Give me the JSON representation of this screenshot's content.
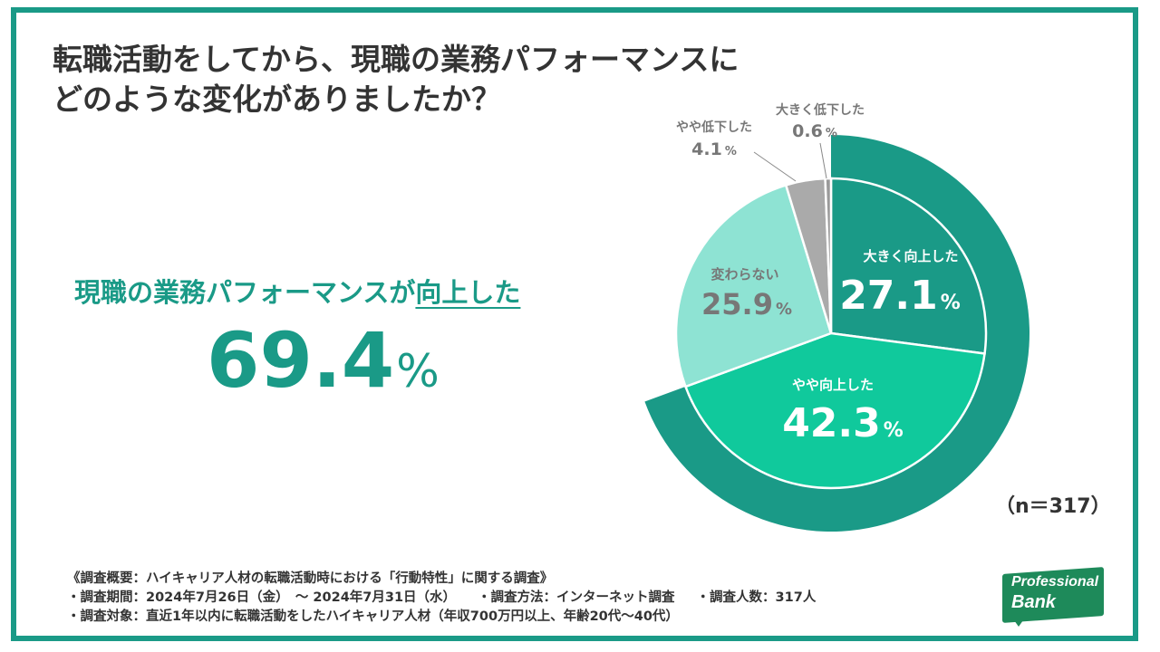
{
  "title": {
    "line1": "転職活動をしてから、現職の業務パフォーマンスに",
    "line2": "どのような変化がありましたか？"
  },
  "headline": {
    "prefix": "現職の業務パフォーマンスが",
    "emphasis": "向上した",
    "value": "69.4",
    "unit": "%"
  },
  "sample_size": "（n＝317）",
  "footer": {
    "overview": "《調査概要：ハイキャリア人材の転職活動時における「行動特性」に関する調査》",
    "period": "・調査期間：2024年7月26日（金）　～ 2024年7月31日（水）",
    "method": "・調査方法：インターネット調査",
    "count": "・調査人数：317人",
    "target": "・調査対象：直近1年以内に転職活動をしたハイキャリア人材（年収700万円以上、年齢20代～40代）"
  },
  "logo": {
    "line1": "Professional",
    "line2": "Bank"
  },
  "colors": {
    "accent": "#1a9a87",
    "slice_big_up": "#1a9a87",
    "slice_some_up": "#10c99c",
    "slice_same": "#8ee3d3",
    "slice_some_down": "#aaaaaa",
    "slice_big_down": "#9a9a9a",
    "outer_ring": "#1a9a87"
  },
  "chart_data": {
    "type": "pie",
    "title": "転職活動をしてから、現職の業務パフォーマンスにどのような変化がありましたか？",
    "unit": "%",
    "n": 317,
    "slices": [
      {
        "label": "大きく向上した",
        "value": 27.1,
        "display": "27.1"
      },
      {
        "label": "やや向上した",
        "value": 42.3,
        "display": "42.3"
      },
      {
        "label": "変わらない",
        "value": 25.9,
        "display": "25.9"
      },
      {
        "label": "やや低下した",
        "value": 4.1,
        "display": "4.1"
      },
      {
        "label": "大きく低下した",
        "value": 0.6,
        "display": "0.6"
      }
    ],
    "highlight": {
      "label": "向上した",
      "value": 69.4,
      "slices": [
        "大きく向上した",
        "やや向上した"
      ]
    }
  }
}
